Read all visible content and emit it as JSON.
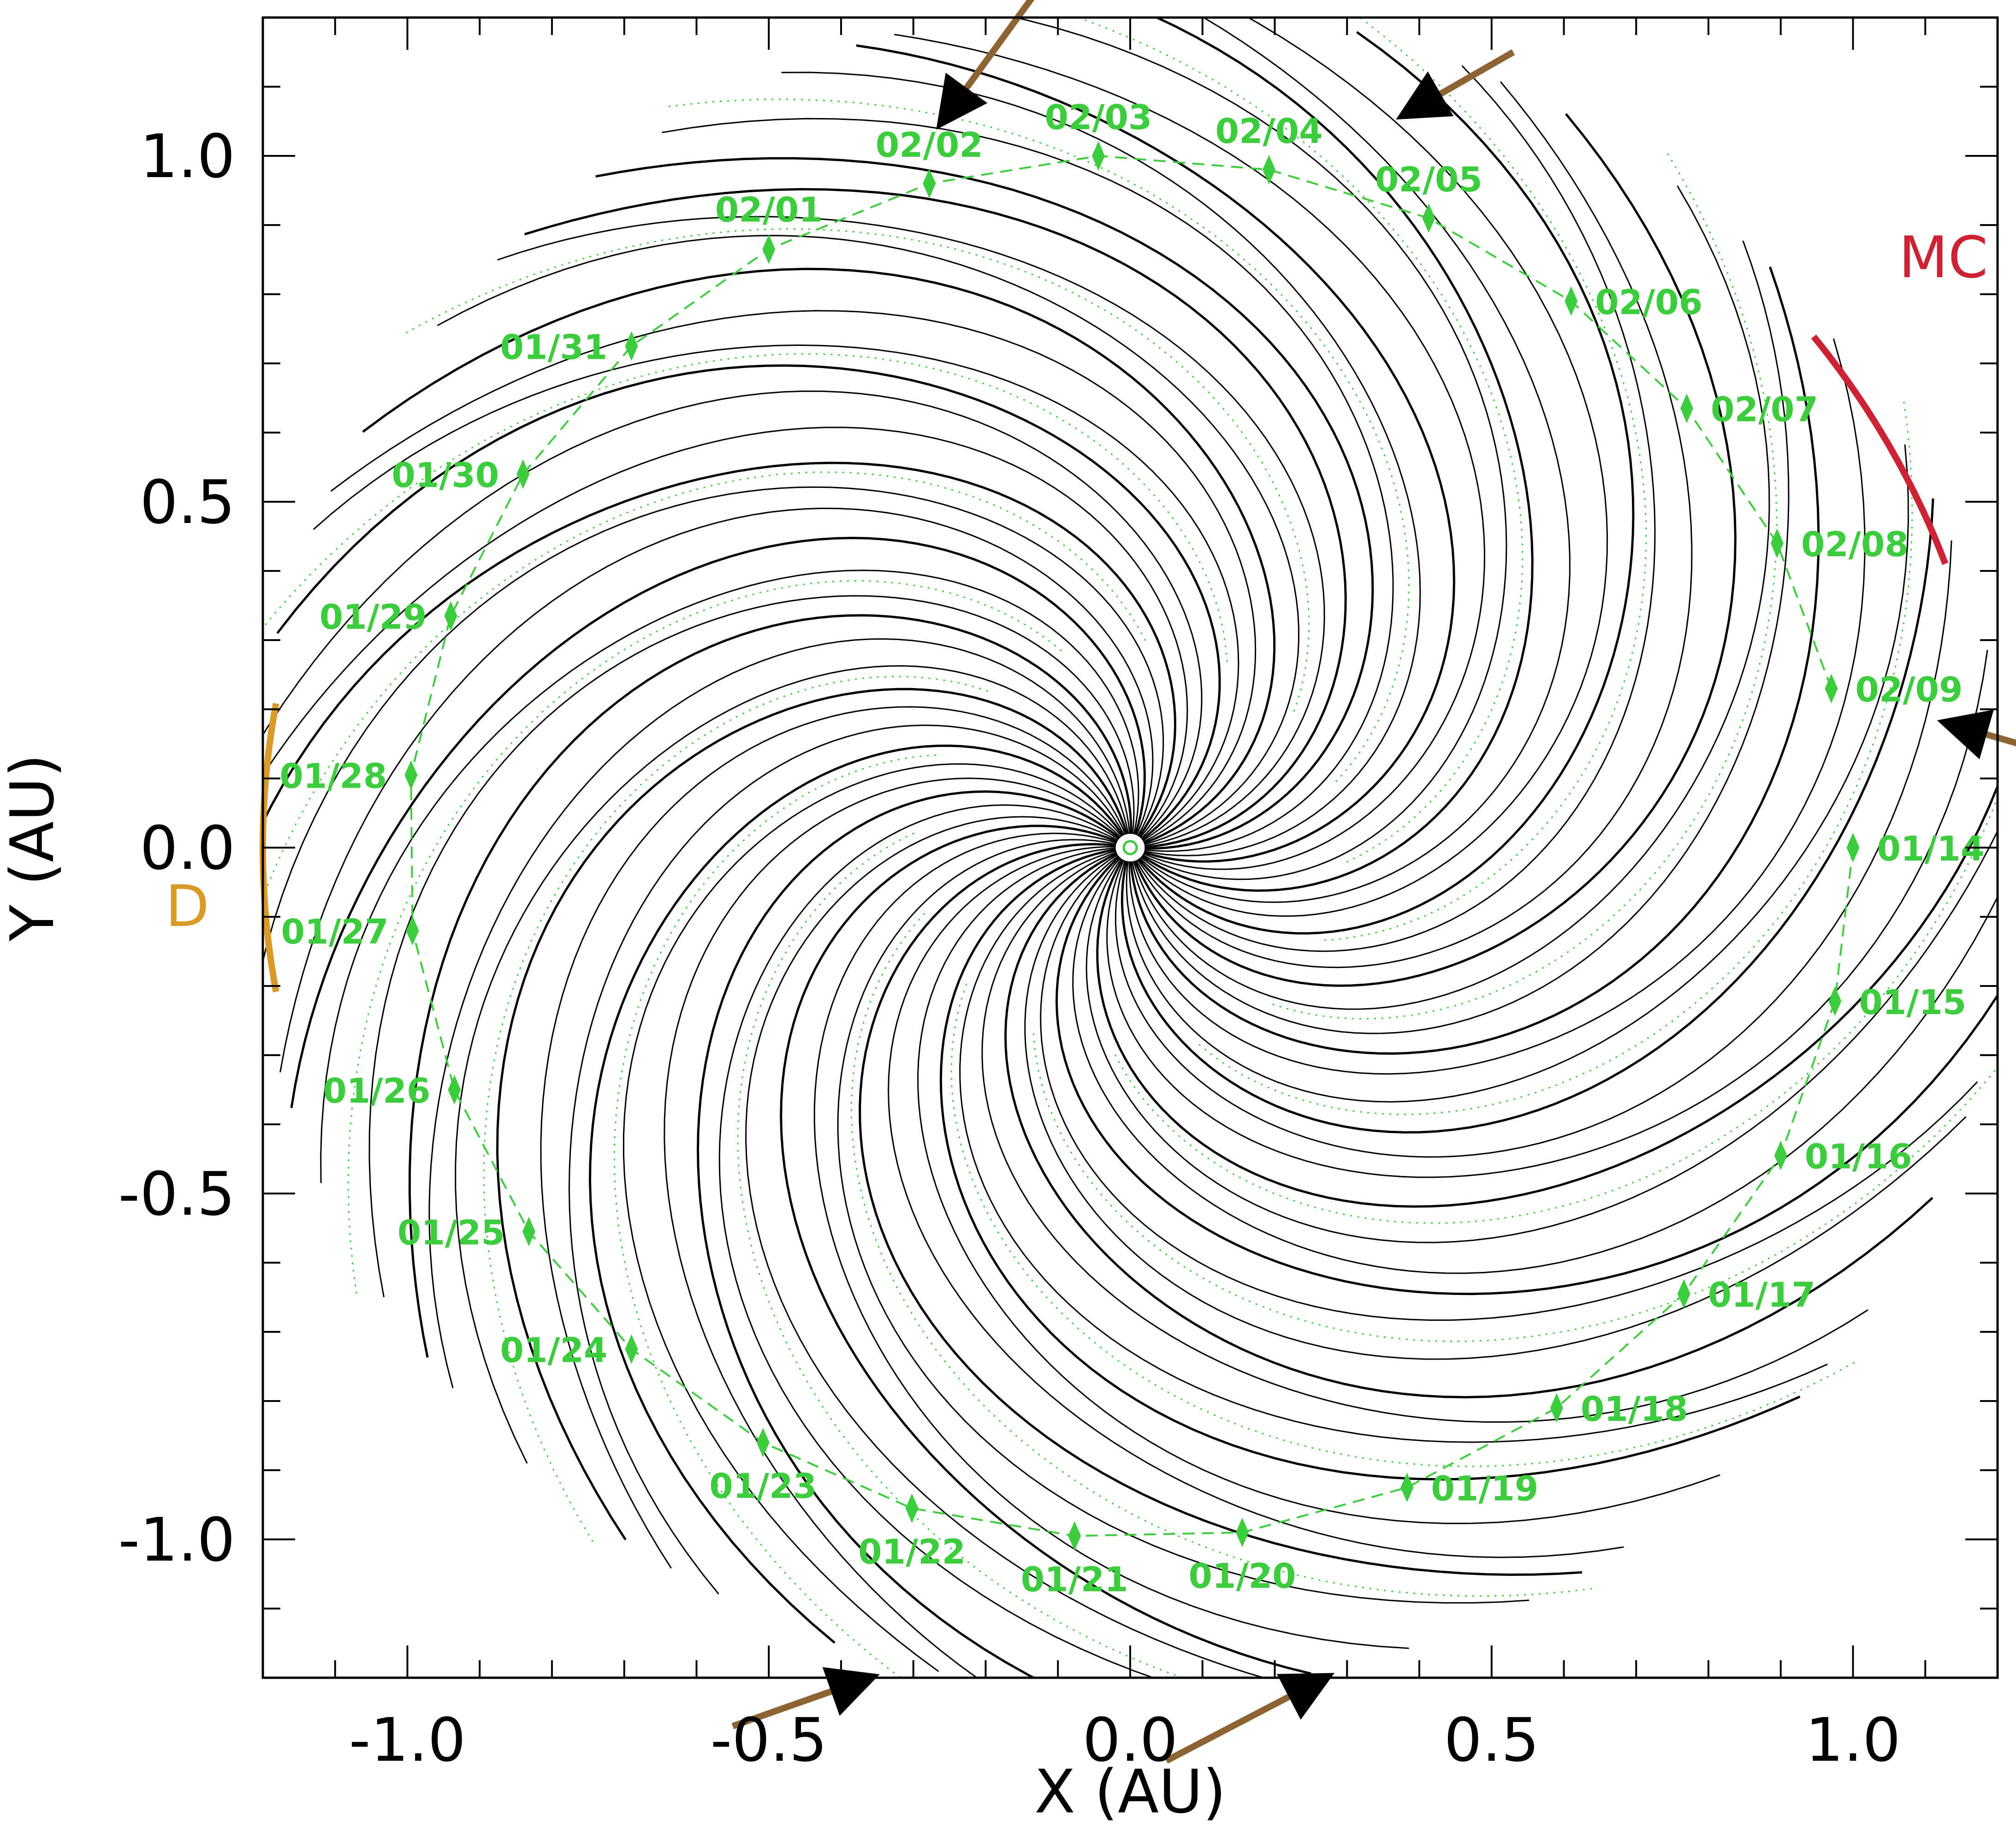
{
  "chart_data": {
    "type": "line",
    "title": "",
    "xlabel": "X (AU)",
    "ylabel": "Y (AU)",
    "xlim": [
      -1.2,
      1.2
    ],
    "ylim": [
      -1.2,
      1.2
    ],
    "x_ticks": [
      {
        "value": -1.0,
        "label": "-1.0"
      },
      {
        "value": -0.5,
        "label": "-0.5"
      },
      {
        "value": 0.0,
        "label": "0.0"
      },
      {
        "value": 0.5,
        "label": "0.5"
      },
      {
        "value": 1.0,
        "label": "1.0"
      }
    ],
    "y_ticks": [
      {
        "value": -1.0,
        "label": "-1.0"
      },
      {
        "value": -0.5,
        "label": "-0.5"
      },
      {
        "value": 0.0,
        "label": "0.0"
      },
      {
        "value": 0.5,
        "label": "0.5"
      },
      {
        "value": 1.0,
        "label": "1.0"
      }
    ],
    "minor_tick_step": 0.1,
    "grid": false,
    "colors": {
      "field_lines": "#000000",
      "dates": "#3dcc3d",
      "D": "#d99a2a",
      "MC": "#cc2233",
      "arrows": "#8c6432"
    },
    "spacecraft_track": [
      {
        "date": "01/14",
        "x": 1.0,
        "y": 0.0
      },
      {
        "date": "01/15",
        "x": 0.975,
        "y": -0.222
      },
      {
        "date": "01/16",
        "x": 0.9,
        "y": -0.445
      },
      {
        "date": "01/17",
        "x": 0.766,
        "y": -0.645
      },
      {
        "date": "01/18",
        "x": 0.59,
        "y": -0.81
      },
      {
        "date": "01/19",
        "x": 0.383,
        "y": -0.925
      },
      {
        "date": "01/20",
        "x": 0.155,
        "y": -0.99
      },
      {
        "date": "01/21",
        "x": -0.077,
        "y": -0.995
      },
      {
        "date": "01/22",
        "x": -0.302,
        "y": -0.955
      },
      {
        "date": "01/23",
        "x": -0.508,
        "y": -0.86
      },
      {
        "date": "01/24",
        "x": -0.69,
        "y": -0.725
      },
      {
        "date": "01/25",
        "x": -0.832,
        "y": -0.555
      },
      {
        "date": "01/26",
        "x": -0.935,
        "y": -0.35
      },
      {
        "date": "01/27",
        "x": -0.993,
        "y": -0.12
      },
      {
        "date": "01/28",
        "x": -0.995,
        "y": 0.105
      },
      {
        "date": "01/29",
        "x": -0.94,
        "y": 0.335
      },
      {
        "date": "01/30",
        "x": -0.84,
        "y": 0.54
      },
      {
        "date": "01/31",
        "x": -0.69,
        "y": 0.725
      },
      {
        "date": "02/01",
        "x": -0.5,
        "y": 0.865
      },
      {
        "date": "02/02",
        "x": -0.278,
        "y": 0.96
      },
      {
        "date": "02/03",
        "x": -0.044,
        "y": 1.0
      },
      {
        "date": "02/04",
        "x": 0.192,
        "y": 0.98
      },
      {
        "date": "02/05",
        "x": 0.413,
        "y": 0.91
      },
      {
        "date": "02/06",
        "x": 0.61,
        "y": 0.79
      },
      {
        "date": "02/07",
        "x": 0.77,
        "y": 0.635
      },
      {
        "date": "02/08",
        "x": 0.895,
        "y": 0.44
      },
      {
        "date": "02/09",
        "x": 0.97,
        "y": 0.23
      }
    ],
    "regions": [
      {
        "label": "D",
        "color": "#d99a2a",
        "r": 1.2,
        "angle_start_deg": -10,
        "angle_end_deg": 10
      },
      {
        "label": "MC",
        "color": "#cc2233",
        "r": 1.2,
        "angle_start_deg": 20,
        "angle_end_deg": 38
      }
    ],
    "field_lines": {
      "count": 64,
      "r_min": 0.02,
      "r_max": 1.22,
      "winding_deg_per_au": 108
    }
  }
}
